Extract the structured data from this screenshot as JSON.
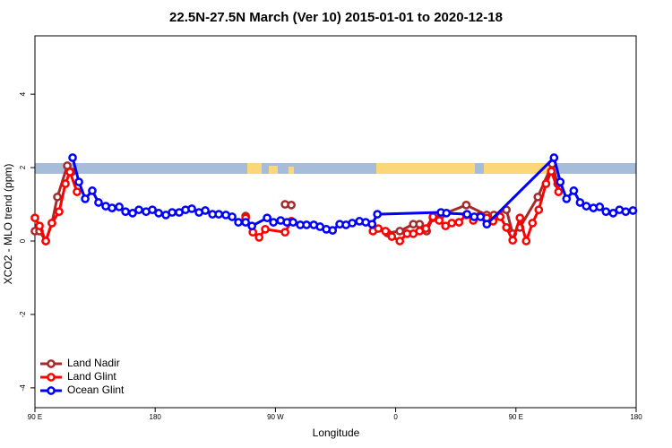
{
  "chart_data": {
    "type": "line",
    "title": "22.5N-27.5N March (Ver 10)   2015-01-01 to 2020-12-18",
    "x_label": "Longitude",
    "y_label": "XCO2 - MLO trend (ppm)",
    "xlim": [
      90,
      540
    ],
    "ylim": [
      -4.54,
      5.59
    ],
    "xticks": [
      {
        "value": 90,
        "label": "90 E"
      },
      180,
      {
        "value": 270,
        "label": "90 W"
      },
      {
        "value": 360,
        "label": "0"
      },
      {
        "value": 450,
        "label": "90 E"
      },
      {
        "value": 540,
        "label": "180"
      }
    ],
    "yticks": [
      -4,
      -2,
      0,
      2,
      4
    ],
    "legend": "bottom-left",
    "series": [
      {
        "name": "Land Nadir",
        "color": "#a52a2a",
        "x": [
          90,
          93.4,
          98.1,
          102.7,
          106.8,
          114.2,
          117.5,
          180,
          247.7,
          260,
          277.2,
          281.9,
          320,
          353.7,
          363.1,
          373.2,
          377.9,
          383.2,
          387.9,
          393.9,
          412.8,
          428.2,
          433.5,
          442.9,
          447.6,
          453.0,
          466.4,
          477.2,
          481.2
        ],
        "values": [
          0.27,
          0.27,
          0,
          0.49,
          1.2,
          2.05,
          1.88,
          null,
          0.68,
          null,
          1.0,
          0.98,
          null,
          0.22,
          0.27,
          0.46,
          0.46,
          0.27,
          0.63,
          0.71,
          0.98,
          0.71,
          0.71,
          0.85,
          0.2,
          0.37,
          1.2,
          2.1,
          1.56
        ]
      },
      {
        "name": "Land Glint",
        "color": "#ff0000",
        "x": [
          90,
          93.4,
          98.1,
          102.7,
          108.1,
          112.8,
          116.2,
          121.5,
          180,
          247.7,
          253.1,
          257.8,
          262.4,
          277.2,
          281.9,
          320,
          343.0,
          347.0,
          352.4,
          357.1,
          363.1,
          368.5,
          373.2,
          377.9,
          382.6,
          387.9,
          392.6,
          397.3,
          402.0,
          407.4,
          412.8,
          418.1,
          422.8,
          428.2,
          432.9,
          438.2,
          442.9,
          447.6,
          453.0,
          457.7,
          462.4,
          467.1,
          472.5,
          476.5,
          481.9
        ],
        "values": [
          0.63,
          0.41,
          0,
          0.49,
          0.8,
          1.56,
          1.88,
          1.34,
          null,
          0.63,
          0.24,
          0.1,
          0.32,
          0.24,
          0.54,
          null,
          0.27,
          0.34,
          0.27,
          0.12,
          0,
          0.2,
          0.2,
          0.27,
          0.34,
          0.66,
          0.56,
          0.41,
          0.49,
          0.51,
          0.71,
          0.56,
          0.68,
          0.63,
          0.54,
          0.66,
          0.37,
          0.02,
          0.63,
          0,
          0.49,
          0.85,
          1.56,
          1.9,
          1.34
        ]
      },
      {
        "name": "Ocean Glint",
        "color": "#0000ff",
        "x": [
          118.2,
          122.9,
          127.6,
          132.9,
          137.6,
          143.0,
          147.7,
          153.1,
          157.8,
          163.1,
          167.8,
          173.2,
          177.9,
          182.6,
          188.0,
          192.7,
          198.0,
          202.7,
          207.4,
          212.8,
          217.5,
          222.9,
          227.6,
          232.9,
          237.6,
          242.3,
          247.7,
          252.4,
          263.8,
          268.5,
          273.9,
          278.6,
          283.2,
          288.6,
          293.3,
          298.7,
          303.4,
          308.1,
          312.8,
          318.1,
          322.8,
          327.5,
          332.9,
          337.6,
          342.3,
          346.3,
          393.9,
          398.0,
          413.4,
          418.8,
          423.5,
          428.2,
          478.5,
          483.2,
          487.9,
          493.3,
          498.0,
          502.7,
          508.0,
          512.7,
          517.4,
          522.8,
          527.5,
          532.2,
          537.6
        ],
        "values": [
          2.27,
          1.61,
          1.15,
          1.37,
          1.05,
          0.95,
          0.9,
          0.93,
          0.8,
          0.76,
          0.85,
          0.8,
          0.85,
          0.76,
          0.71,
          0.78,
          0.78,
          0.85,
          0.88,
          0.78,
          0.83,
          0.73,
          0.73,
          0.71,
          0.66,
          0.51,
          0.51,
          0.41,
          0.63,
          0.51,
          0.56,
          0.51,
          0.51,
          0.44,
          0.44,
          0.44,
          0.39,
          0.32,
          0.29,
          0.46,
          0.44,
          0.49,
          0.54,
          0.51,
          0.46,
          0.73,
          0.78,
          0.76,
          0.73,
          0.66,
          0.66,
          0.46,
          2.27,
          1.61,
          1.15,
          1.37,
          1.05,
          0.95,
          0.9,
          0.93,
          0.8,
          0.76,
          0.85,
          0.8,
          0.83
        ]
      }
    ]
  }
}
